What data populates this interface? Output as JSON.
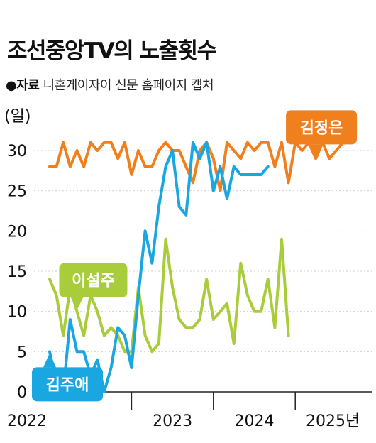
{
  "title": "조선중앙TV의 노출횟수",
  "source": {
    "bullet": "●",
    "label": "자료",
    "text": "니혼게이자이 신문 홈페이지 캡처"
  },
  "unit_label": "(일)",
  "chart_data": {
    "type": "line",
    "title": "조선중앙TV의 노출횟수",
    "ylabel": "(일)",
    "ylim": [
      0,
      30
    ],
    "yticks": [
      0,
      5,
      10,
      15,
      20,
      25,
      30
    ],
    "x_range": [
      "2022-01",
      "2025-12"
    ],
    "x_ticks": [
      {
        "label": "2022",
        "x": "2022-01"
      },
      {
        "label": "2023",
        "x": "2023-01"
      },
      {
        "label": "2024",
        "x": "2024-01"
      },
      {
        "label": "2025년",
        "x": "2025-01"
      }
    ],
    "grid": true,
    "series": [
      {
        "name": "김정은",
        "color": "#f07f1e",
        "label_at": "2025-04",
        "points": [
          [
            "2022-01",
            28
          ],
          [
            "2022-02",
            28
          ],
          [
            "2022-03",
            31
          ],
          [
            "2022-04",
            28
          ],
          [
            "2022-05",
            30
          ],
          [
            "2022-06",
            28
          ],
          [
            "2022-07",
            31
          ],
          [
            "2022-08",
            30
          ],
          [
            "2022-09",
            31
          ],
          [
            "2022-10",
            31
          ],
          [
            "2022-11",
            29
          ],
          [
            "2022-12",
            31
          ],
          [
            "2023-01",
            27
          ],
          [
            "2023-02",
            30
          ],
          [
            "2023-03",
            28
          ],
          [
            "2023-04",
            28
          ],
          [
            "2023-05",
            30
          ],
          [
            "2023-06",
            31
          ],
          [
            "2023-07",
            30
          ],
          [
            "2023-08",
            30
          ],
          [
            "2023-09",
            28
          ],
          [
            "2023-10",
            26
          ],
          [
            "2023-11",
            30
          ],
          [
            "2023-12",
            31
          ],
          [
            "2024-01",
            29
          ],
          [
            "2024-02",
            25
          ],
          [
            "2024-03",
            31
          ],
          [
            "2024-04",
            30
          ],
          [
            "2024-05",
            29
          ],
          [
            "2024-06",
            31
          ],
          [
            "2024-07",
            30
          ],
          [
            "2024-08",
            31
          ],
          [
            "2024-09",
            31
          ],
          [
            "2024-10",
            28
          ],
          [
            "2024-11",
            31
          ],
          [
            "2024-12",
            26
          ],
          [
            "2025-01",
            31
          ],
          [
            "2025-02",
            30
          ],
          [
            "2025-03",
            31
          ],
          [
            "2025-04",
            29
          ],
          [
            "2025-05",
            31
          ],
          [
            "2025-06",
            29
          ],
          [
            "2025-07",
            30
          ],
          [
            "2025-08",
            31
          ]
        ]
      },
      {
        "name": "김주애",
        "color": "#1aa6e0",
        "label_at": "2025-01",
        "points": [
          [
            "2022-01",
            5
          ],
          [
            "2022-02",
            1
          ],
          [
            "2022-03",
            0
          ],
          [
            "2022-04",
            9
          ],
          [
            "2022-05",
            5
          ],
          [
            "2022-06",
            5
          ],
          [
            "2022-07",
            2
          ],
          [
            "2022-08",
            4
          ],
          [
            "2022-09",
            0
          ],
          [
            "2022-10",
            3
          ],
          [
            "2022-11",
            8
          ],
          [
            "2022-12",
            7
          ],
          [
            "2023-01",
            3
          ],
          [
            "2023-02",
            12
          ],
          [
            "2023-03",
            20
          ],
          [
            "2023-04",
            16
          ],
          [
            "2023-05",
            23
          ],
          [
            "2023-06",
            28
          ],
          [
            "2023-07",
            30
          ],
          [
            "2023-08",
            23
          ],
          [
            "2023-09",
            22
          ],
          [
            "2023-10",
            31
          ],
          [
            "2023-11",
            29
          ],
          [
            "2023-12",
            31
          ],
          [
            "2024-01",
            25
          ],
          [
            "2024-02",
            28
          ],
          [
            "2024-03",
            24
          ],
          [
            "2024-04",
            28
          ],
          [
            "2024-05",
            27
          ],
          [
            "2024-06",
            27
          ],
          [
            "2024-07",
            27
          ],
          [
            "2024-08",
            27
          ],
          [
            "2024-09",
            28
          ]
        ]
      },
      {
        "name": "이설주",
        "color": "#a9cd3a",
        "label_at": "2022-05",
        "points": [
          [
            "2022-01",
            14
          ],
          [
            "2022-02",
            12
          ],
          [
            "2022-03",
            7
          ],
          [
            "2022-04",
            13
          ],
          [
            "2022-05",
            10
          ],
          [
            "2022-06",
            7
          ],
          [
            "2022-07",
            12
          ],
          [
            "2022-08",
            10
          ],
          [
            "2022-09",
            7
          ],
          [
            "2022-10",
            8
          ],
          [
            "2022-11",
            7
          ],
          [
            "2022-12",
            5
          ],
          [
            "2023-01",
            5
          ],
          [
            "2023-02",
            13
          ],
          [
            "2023-03",
            7
          ],
          [
            "2023-04",
            5
          ],
          [
            "2023-05",
            6
          ],
          [
            "2023-06",
            19
          ],
          [
            "2023-07",
            13
          ],
          [
            "2023-08",
            9
          ],
          [
            "2023-09",
            8
          ],
          [
            "2023-10",
            8
          ],
          [
            "2023-11",
            9
          ],
          [
            "2023-12",
            14
          ],
          [
            "2024-01",
            9
          ],
          [
            "2024-02",
            10
          ],
          [
            "2024-03",
            11
          ],
          [
            "2024-04",
            6
          ],
          [
            "2024-05",
            16
          ],
          [
            "2024-06",
            12
          ],
          [
            "2024-07",
            10
          ],
          [
            "2024-08",
            10
          ],
          [
            "2024-09",
            14
          ],
          [
            "2024-10",
            8
          ],
          [
            "2024-11",
            19
          ],
          [
            "2024-12",
            7
          ]
        ]
      }
    ]
  }
}
